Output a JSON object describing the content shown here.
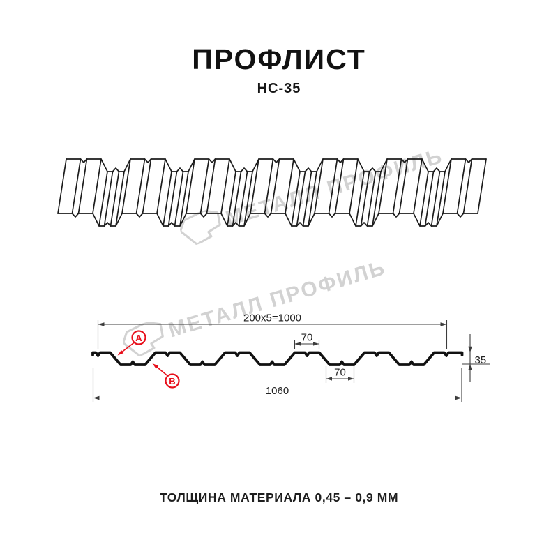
{
  "header": {
    "title": "ПРОФЛИСТ",
    "subtitle": "НС-35"
  },
  "watermark": {
    "text": "МЕТАЛЛ ПРОФИЛЬ",
    "logo": "metall-profil-folded-sheet"
  },
  "dimensions": {
    "modular_width": "200x5=1000",
    "rib_top_width": "70",
    "rib_bottom_width": "70",
    "profile_height": "35",
    "full_width": "1060"
  },
  "markers": {
    "a": "А",
    "b": "В"
  },
  "footer": {
    "thickness_label": "ТОЛЩИНА МАТЕРИАЛА 0,45 – 0,9 ММ"
  },
  "colors": {
    "line": "#1c1c1c",
    "dimension": "#3c3c3c",
    "accent_red": "#e8101c",
    "watermark": "#d2d2d2"
  }
}
